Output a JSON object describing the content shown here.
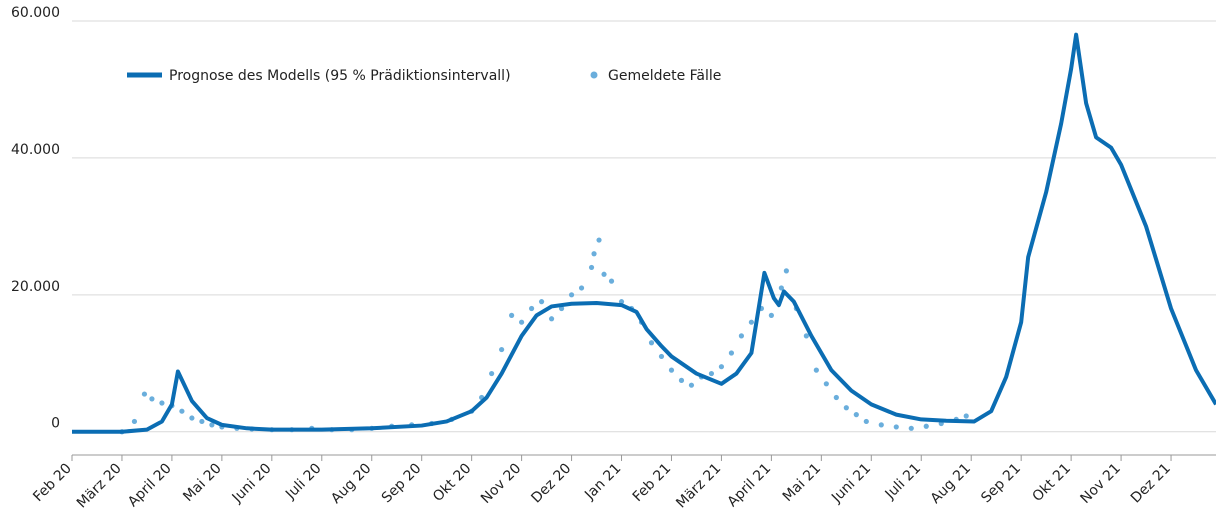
{
  "chart_data": {
    "type": "line",
    "xlim": [
      0,
      22.9
    ],
    "xticks": [
      {
        "value": 0,
        "label": "Feb 20"
      },
      {
        "value": 1,
        "label": "März 20"
      },
      {
        "value": 2,
        "label": "April 20"
      },
      {
        "value": 3,
        "label": "Mai 20"
      },
      {
        "value": 4,
        "label": "Juni 20"
      },
      {
        "value": 5,
        "label": "Juli 20"
      },
      {
        "value": 6,
        "label": "Aug 20"
      },
      {
        "value": 7,
        "label": "Sep 20"
      },
      {
        "value": 8,
        "label": "Okt 20"
      },
      {
        "value": 9,
        "label": "Nov 20"
      },
      {
        "value": 10,
        "label": "Dez 20"
      },
      {
        "value": 11,
        "label": "Jan 21"
      },
      {
        "value": 12,
        "label": "Feb 21"
      },
      {
        "value": 13,
        "label": "März 21"
      },
      {
        "value": 14,
        "label": "April 21"
      },
      {
        "value": 15,
        "label": "Mai 21"
      },
      {
        "value": 16,
        "label": "Juni 21"
      },
      {
        "value": 17,
        "label": "Juli 21"
      },
      {
        "value": 18,
        "label": "Aug 21"
      },
      {
        "value": 19,
        "label": "Sep 21"
      },
      {
        "value": 20,
        "label": "Okt 21"
      },
      {
        "value": 21,
        "label": "Nov 21"
      },
      {
        "value": 22,
        "label": "Dez 21"
      }
    ],
    "ylim": [
      -3400,
      60000
    ],
    "yticks": [
      0,
      {
        "value": 20000,
        "label": "20.000"
      },
      {
        "value": 40000,
        "label": "40.000"
      },
      {
        "value": 60000,
        "label": "60.000"
      }
    ],
    "grid": true,
    "series": [
      {
        "name": "Prognose des Modells (95 % Prädiktionsintervall)",
        "color": "#0b6db3",
        "kind": "line",
        "x": [
          0,
          1,
          1.5,
          1.8,
          2.0,
          2.12,
          2.4,
          2.7,
          3,
          3.5,
          4,
          5,
          6,
          7,
          7.5,
          8,
          8.3,
          8.6,
          9,
          9.3,
          9.6,
          10,
          10.5,
          11,
          11.3,
          11.5,
          11.8,
          12,
          12.5,
          13,
          13.3,
          13.6,
          13.86,
          14.05,
          14.15,
          14.25,
          14.45,
          14.8,
          15.2,
          15.6,
          16,
          16.5,
          17,
          17.5,
          18.06,
          18.4,
          18.7,
          19,
          19.14,
          19.5,
          19.8,
          20.0,
          20.1,
          20.3,
          20.5,
          20.8,
          21,
          21.5,
          22,
          22.5,
          22.9
        ],
        "values": [
          0,
          0,
          300,
          1500,
          4000,
          8800,
          4500,
          2000,
          1000,
          500,
          300,
          300,
          500,
          900,
          1500,
          3000,
          5000,
          8500,
          14000,
          17000,
          18300,
          18700,
          18800,
          18500,
          17500,
          15000,
          12500,
          11000,
          8500,
          7000,
          8500,
          11500,
          23200,
          19500,
          18500,
          20500,
          19000,
          14000,
          9000,
          6000,
          4000,
          2500,
          1800,
          1600,
          1500,
          3000,
          8000,
          16000,
          25500,
          35000,
          45000,
          53000,
          58000,
          48000,
          43000,
          41500,
          39000,
          30000,
          18000,
          9000,
          4000
        ]
      },
      {
        "name": "Gemeldete Fälle",
        "color": "#6aaedc",
        "kind": "scatter",
        "x": [
          1.0,
          1.25,
          1.45,
          1.6,
          1.8,
          2.0,
          2.2,
          2.4,
          2.6,
          2.8,
          3.0,
          3.3,
          3.6,
          4.0,
          4.4,
          4.8,
          5.2,
          5.6,
          6.0,
          6.4,
          6.8,
          7.2,
          7.6,
          8.0,
          8.2,
          8.4,
          8.6,
          8.8,
          9.0,
          9.2,
          9.4,
          9.6,
          9.8,
          10.0,
          10.2,
          10.4,
          10.45,
          10.55,
          10.65,
          10.8,
          11.0,
          11.2,
          11.4,
          11.6,
          11.8,
          12.0,
          12.2,
          12.4,
          12.6,
          12.8,
          13.0,
          13.2,
          13.4,
          13.6,
          13.8,
          14.0,
          14.2,
          14.3,
          14.5,
          14.7,
          14.9,
          15.1,
          15.3,
          15.5,
          15.7,
          15.9,
          16.2,
          16.5,
          16.8,
          17.1,
          17.4,
          17.7,
          17.9
        ],
        "values": [
          0,
          1500,
          5500,
          4800,
          4200,
          3800,
          3000,
          2000,
          1500,
          1000,
          700,
          500,
          400,
          300,
          300,
          500,
          300,
          300,
          500,
          800,
          1000,
          1200,
          1800,
          3000,
          5000,
          8500,
          12000,
          17000,
          16000,
          18000,
          19000,
          16500,
          18000,
          20000,
          21000,
          24000,
          26000,
          28000,
          23000,
          22000,
          19000,
          18000,
          16000,
          13000,
          11000,
          9000,
          7500,
          6800,
          8000,
          8500,
          9500,
          11500,
          14000,
          16000,
          18000,
          17000,
          21000,
          23500,
          18000,
          14000,
          9000,
          7000,
          5000,
          3500,
          2500,
          1500,
          1000,
          700,
          500,
          800,
          1200,
          1800,
          2300
        ]
      }
    ]
  }
}
